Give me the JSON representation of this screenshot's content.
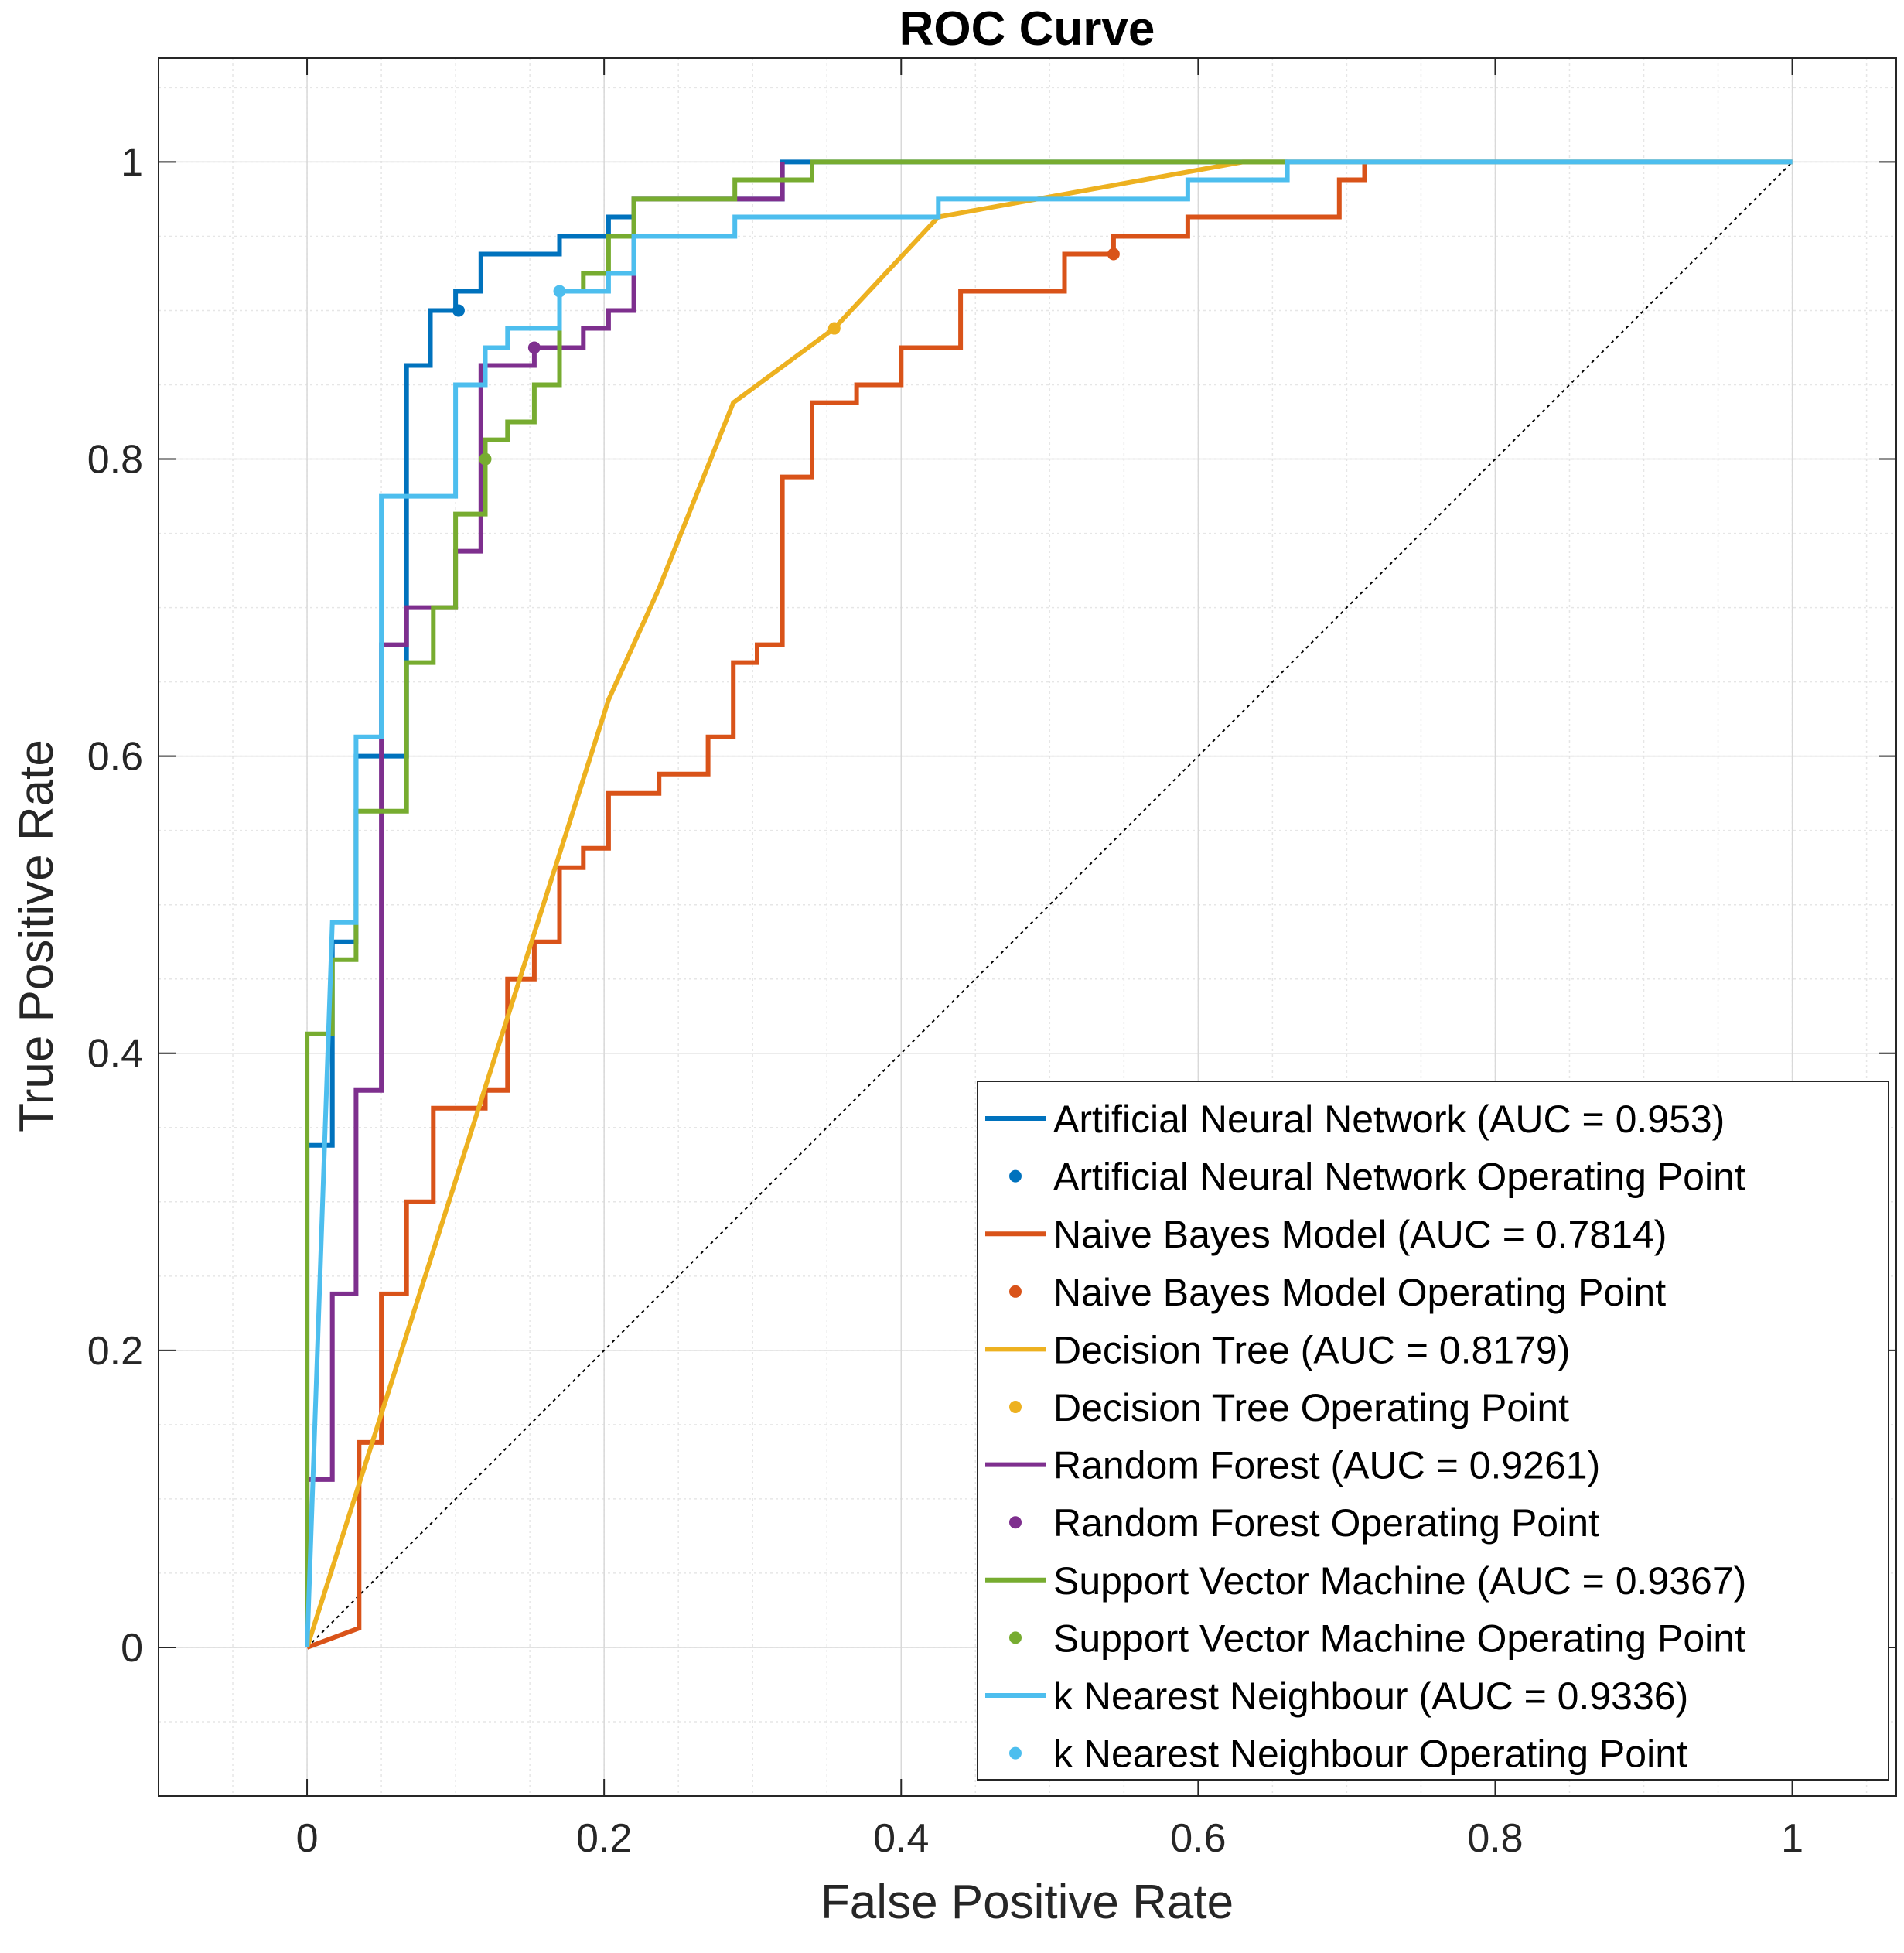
{
  "chart_data": {
    "type": "line",
    "title": "ROC Curve",
    "xlabel": "False Positive Rate",
    "ylabel": "True Positive Rate",
    "xlim": [
      -0.1,
      1.07
    ],
    "ylim": [
      -0.1,
      1.07
    ],
    "grid": true,
    "minor_grid": true,
    "legend_position": "bottom-right",
    "xticks": [
      0,
      0.2,
      0.4,
      0.6,
      0.8,
      1
    ],
    "xtick_labels": [
      "0",
      "0.2",
      "0.4",
      "0.6",
      "0.8",
      "1"
    ],
    "yticks": [
      0,
      0.2,
      0.4,
      0.6,
      0.8,
      1
    ],
    "ytick_labels": [
      "0",
      "0.2",
      "0.4",
      "0.6",
      "0.8",
      "1"
    ],
    "reference_line": {
      "style": "dotted",
      "color": "#000000",
      "x": [
        0,
        1
      ],
      "y": [
        0,
        1
      ]
    },
    "series": [
      {
        "name": "Artificial Neural Network (AUC = 0.953)",
        "color": "#0072BD",
        "x": [
          0,
          0,
          0.017,
          0.017,
          0.033,
          0.033,
          0.05,
          0.05,
          0.067,
          0.067,
          0.083,
          0.083,
          0.1,
          0.1,
          0.117,
          0.117,
          0.17,
          0.17,
          0.203,
          0.203,
          0.22,
          0.22,
          0.32,
          0.32,
          0.66,
          1
        ],
        "y": [
          0,
          0.338,
          0.338,
          0.475,
          0.475,
          0.6,
          0.6,
          0.6,
          0.6,
          0.863,
          0.863,
          0.9,
          0.9,
          0.913,
          0.913,
          0.938,
          0.938,
          0.95,
          0.95,
          0.963,
          0.963,
          0.975,
          0.975,
          1,
          1,
          1
        ]
      },
      {
        "name": "Artificial Neural Network Operating Point",
        "color": "#0072BD",
        "marker": true,
        "x": [
          0.102
        ],
        "y": [
          0.9
        ]
      },
      {
        "name": "Naive Bayes Model (AUC = 0.7814)",
        "color": "#D95319",
        "x": [
          0,
          0.035,
          0.035,
          0.05,
          0.05,
          0.067,
          0.067,
          0.085,
          0.085,
          0.1,
          0.1,
          0.12,
          0.12,
          0.135,
          0.135,
          0.153,
          0.153,
          0.17,
          0.17,
          0.186,
          0.186,
          0.203,
          0.203,
          0.237,
          0.237,
          0.27,
          0.27,
          0.287,
          0.287,
          0.303,
          0.303,
          0.32,
          0.32,
          0.34,
          0.34,
          0.37,
          0.37,
          0.4,
          0.4,
          0.44,
          0.44,
          0.51,
          0.51,
          0.543,
          0.543,
          0.593,
          0.593,
          0.695,
          0.695,
          0.712,
          0.712
        ],
        "y": [
          0,
          0.013,
          0.138,
          0.138,
          0.238,
          0.238,
          0.3,
          0.3,
          0.363,
          0.363,
          0.363,
          0.363,
          0.375,
          0.375,
          0.45,
          0.45,
          0.475,
          0.475,
          0.525,
          0.525,
          0.538,
          0.538,
          0.575,
          0.575,
          0.588,
          0.588,
          0.613,
          0.613,
          0.663,
          0.663,
          0.675,
          0.675,
          0.788,
          0.788,
          0.838,
          0.838,
          0.85,
          0.85,
          0.875,
          0.875,
          0.913,
          0.913,
          0.938,
          0.938,
          0.95,
          0.95,
          0.963,
          0.963,
          0.988,
          0.988,
          1
        ]
      },
      {
        "name": "Naive Bayes Model Operating Point",
        "color": "#D95319",
        "marker": true,
        "x": [
          0.543
        ],
        "y": [
          0.938
        ]
      },
      {
        "name": "Decision Tree (AUC = 0.8179)",
        "color": "#EDB120",
        "x": [
          0,
          0.203,
          0.237,
          0.287,
          0.355,
          0.425,
          0.63,
          1
        ],
        "y": [
          0,
          0.638,
          0.713,
          0.838,
          0.888,
          0.963,
          1,
          1
        ]
      },
      {
        "name": "Decision Tree Operating Point",
        "color": "#EDB120",
        "marker": true,
        "x": [
          0.355
        ],
        "y": [
          0.888
        ]
      },
      {
        "name": "Random Forest (AUC = 0.9261)",
        "color": "#7E2F8E",
        "x": [
          0,
          0,
          0.017,
          0.017,
          0.033,
          0.033,
          0.05,
          0.05,
          0.067,
          0.067,
          0.085,
          0.085,
          0.1,
          0.1,
          0.117,
          0.117,
          0.153,
          0.153,
          0.186,
          0.186,
          0.203,
          0.203,
          0.22,
          0.22,
          0.32,
          0.32
        ],
        "y": [
          0,
          0.113,
          0.113,
          0.238,
          0.238,
          0.375,
          0.375,
          0.675,
          0.675,
          0.7,
          0.7,
          0.7,
          0.7,
          0.738,
          0.738,
          0.863,
          0.863,
          0.875,
          0.875,
          0.888,
          0.888,
          0.9,
          0.9,
          0.975,
          0.975,
          1
        ]
      },
      {
        "name": "Random Forest Operating Point",
        "color": "#7E2F8E",
        "marker": true,
        "x": [
          0.153
        ],
        "y": [
          0.875
        ]
      },
      {
        "name": "Support Vector Machine (AUC = 0.9367)",
        "color": "#77AC30",
        "x": [
          0,
          0,
          0.017,
          0.017,
          0.033,
          0.033,
          0.067,
          0.067,
          0.085,
          0.085,
          0.1,
          0.1,
          0.12,
          0.12,
          0.135,
          0.135,
          0.153,
          0.153,
          0.17,
          0.17,
          0.186,
          0.186,
          0.203,
          0.203,
          0.22,
          0.22,
          0.288,
          0.288,
          0.34,
          0.34,
          0.66
        ],
        "y": [
          0,
          0.413,
          0.413,
          0.463,
          0.463,
          0.563,
          0.563,
          0.663,
          0.663,
          0.7,
          0.7,
          0.763,
          0.763,
          0.813,
          0.813,
          0.825,
          0.825,
          0.85,
          0.85,
          0.913,
          0.913,
          0.925,
          0.925,
          0.95,
          0.95,
          0.975,
          0.975,
          0.988,
          0.988,
          1,
          1
        ]
      },
      {
        "name": "Support Vector Machine Operating Point",
        "color": "#77AC30",
        "marker": true,
        "x": [
          0.12
        ],
        "y": [
          0.8
        ]
      },
      {
        "name": "k Nearest Neighbour (AUC = 0.9336)",
        "color": "#4DBEEE",
        "x": [
          0,
          0.017,
          0.017,
          0.033,
          0.033,
          0.05,
          0.05,
          0.1,
          0.1,
          0.12,
          0.12,
          0.135,
          0.135,
          0.17,
          0.17,
          0.203,
          0.203,
          0.22,
          0.22,
          0.288,
          0.288,
          0.425,
          0.425,
          0.593,
          0.593,
          0.66,
          0.66,
          1
        ],
        "y": [
          0,
          0.488,
          0.488,
          0.488,
          0.613,
          0.613,
          0.775,
          0.775,
          0.85,
          0.85,
          0.875,
          0.875,
          0.888,
          0.888,
          0.913,
          0.913,
          0.925,
          0.925,
          0.95,
          0.95,
          0.963,
          0.963,
          0.975,
          0.975,
          0.988,
          0.988,
          1,
          1
        ]
      },
      {
        "name": "k Nearest Neighbour Operating Point",
        "color": "#4DBEEE",
        "marker": true,
        "x": [
          0.17
        ],
        "y": [
          0.913
        ]
      }
    ]
  }
}
